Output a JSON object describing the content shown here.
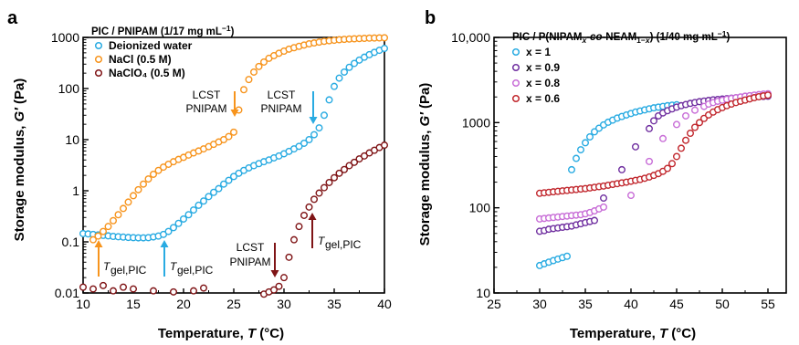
{
  "chart_data": [
    {
      "panel": "a",
      "type": "scatter",
      "xlabel": "Temperature, T (°C)",
      "ylabel": "Storage modulus, G′ (Pa)",
      "xlim": [
        10,
        40
      ],
      "ylim": [
        0.01,
        1000
      ],
      "yscale": "log",
      "xticks": [
        "10",
        "15",
        "20",
        "25",
        "30",
        "35",
        "40"
      ],
      "yticks": [
        "0.01",
        "0.1",
        "1",
        "10",
        "100",
        "1000"
      ],
      "legend_title": "PIC / PNIPAM (1/17 mg mL⁻¹)",
      "legend_position": "top-left",
      "series": [
        {
          "name": "Deionized water",
          "color": "#29ABE2",
          "x": [
            10,
            10.5,
            11,
            11.5,
            12,
            12.5,
            13,
            13.5,
            14,
            14.5,
            15,
            15.5,
            16,
            16.5,
            17,
            17.5,
            18,
            18.5,
            19,
            19.5,
            20,
            20.5,
            21,
            21.5,
            22,
            22.5,
            23,
            23.5,
            24,
            24.5,
            25,
            25.5,
            26,
            26.5,
            27,
            27.5,
            28,
            28.5,
            29,
            29.5,
            30,
            30.5,
            31,
            31.5,
            32,
            32.5,
            33,
            33.5,
            34,
            34.5,
            35,
            35.5,
            36,
            36.5,
            37,
            37.5,
            38,
            38.5,
            39,
            39.5,
            40
          ],
          "y": [
            0.145,
            0.143,
            0.14,
            0.137,
            0.134,
            0.131,
            0.128,
            0.126,
            0.124,
            0.122,
            0.121,
            0.12,
            0.12,
            0.121,
            0.125,
            0.13,
            0.14,
            0.16,
            0.19,
            0.23,
            0.28,
            0.34,
            0.42,
            0.52,
            0.63,
            0.77,
            0.93,
            1.1,
            1.35,
            1.6,
            1.9,
            2.2,
            2.5,
            2.8,
            3.1,
            3.4,
            3.7,
            4.0,
            4.4,
            4.8,
            5.3,
            5.9,
            6.6,
            7.4,
            8.5,
            10,
            12.5,
            17,
            30,
            60,
            110,
            160,
            210,
            260,
            310,
            360,
            410,
            460,
            510,
            560,
            610
          ]
        },
        {
          "name": "NaCl (0.5 M)",
          "color": "#F7941D",
          "x": [
            11,
            11.5,
            12,
            12.5,
            13,
            13.5,
            14,
            14.5,
            15,
            15.5,
            16,
            16.5,
            17,
            17.5,
            18,
            18.5,
            19,
            19.5,
            20,
            20.5,
            21,
            21.5,
            22,
            22.5,
            23,
            23.5,
            24,
            24.5,
            25,
            25.5,
            26,
            26.5,
            27,
            27.5,
            28,
            28.5,
            29,
            29.5,
            30,
            30.5,
            31,
            31.5,
            32,
            32.5,
            33,
            33.5,
            34,
            34.5,
            35,
            35.5,
            36,
            36.5,
            37,
            37.5,
            38,
            38.5,
            39,
            39.5,
            40
          ],
          "y": [
            0.11,
            0.13,
            0.16,
            0.2,
            0.26,
            0.34,
            0.45,
            0.6,
            0.8,
            1.05,
            1.35,
            1.7,
            2.1,
            2.5,
            2.9,
            3.3,
            3.7,
            4.1,
            4.5,
            5,
            5.5,
            6,
            6.6,
            7.3,
            8.1,
            9,
            10,
            11.5,
            14,
            38,
            95,
            150,
            210,
            270,
            330,
            390,
            440,
            490,
            540,
            590,
            630,
            670,
            710,
            750,
            780,
            810,
            840,
            860,
            880,
            900,
            915,
            930,
            940,
            950,
            960,
            970,
            975,
            980,
            985
          ]
        },
        {
          "name": "NaClO₄ (0.5 M)",
          "color": "#7F1416",
          "x": [
            10,
            11,
            12,
            13,
            14,
            15,
            17,
            19,
            21,
            22,
            27,
            28,
            28.5,
            29,
            29.5,
            30,
            30.5,
            31,
            31.5,
            32,
            32.5,
            33,
            33.5,
            34,
            34.5,
            35,
            35.5,
            36,
            36.5,
            37,
            37.5,
            38,
            38.5,
            39,
            39.5,
            40
          ],
          "y": [
            0.013,
            0.012,
            0.014,
            0.011,
            0.013,
            0.012,
            0.011,
            0.0105,
            0.011,
            0.0125,
            0.0085,
            0.0095,
            0.0105,
            0.0115,
            0.0135,
            0.02,
            0.05,
            0.11,
            0.2,
            0.33,
            0.48,
            0.68,
            0.9,
            1.15,
            1.45,
            1.8,
            2.2,
            2.6,
            3.1,
            3.6,
            4.2,
            4.8,
            5.5,
            6.2,
            7,
            7.8
          ]
        }
      ],
      "annotations": [
        {
          "text": "LCST",
          "text2": "PNIPAM",
          "color": "#F7941D"
        },
        {
          "text": "LCST",
          "text2": "PNIPAM",
          "color": "#29ABE2"
        },
        {
          "text": "LCST",
          "text2": "PNIPAM",
          "color": "#7F1416"
        },
        {
          "text": "T",
          "sub": "gel,PIC",
          "color": "#F7941D"
        },
        {
          "text": "T",
          "sub": "gel,PIC",
          "color": "#29ABE2"
        },
        {
          "text": "T",
          "sub": "gel,PIC",
          "color": "#7F1416"
        }
      ]
    },
    {
      "panel": "b",
      "type": "scatter",
      "xlabel": "Temperature, T (°C)",
      "ylabel": "Storage modulus, G′ (Pa)",
      "xlim": [
        25,
        57
      ],
      "ylim": [
        10,
        10000
      ],
      "yscale": "log",
      "xticks": [
        "25",
        "30",
        "35",
        "40",
        "45",
        "50",
        "55"
      ],
      "yticks": [
        "10",
        "100",
        "1000",
        "10,000"
      ],
      "legend_title": "PIC / P(NIPAMx-co-NEAM1−x) (1/40 mg mL⁻¹)",
      "legend_position": "top-left",
      "series": [
        {
          "name": "x = 1",
          "color": "#29ABE2",
          "x": [
            30,
            30.5,
            31,
            31.5,
            32,
            32.5,
            33,
            33.5,
            34,
            34.5,
            35,
            35.5,
            36,
            36.5,
            37,
            37.5,
            38,
            38.5,
            39,
            39.5,
            40,
            40.5,
            41,
            41.5,
            42,
            42.5,
            43,
            43.5,
            44,
            44.5,
            45
          ],
          "y": [
            21,
            22,
            23,
            24,
            25,
            26,
            27,
            280,
            380,
            480,
            580,
            680,
            780,
            860,
            940,
            1010,
            1070,
            1130,
            1180,
            1230,
            1280,
            1330,
            1370,
            1410,
            1450,
            1490,
            1520,
            1550,
            1580,
            1600,
            1620
          ]
        },
        {
          "name": "x = 0.9",
          "color": "#7030A0",
          "x": [
            30,
            30.5,
            31,
            31.5,
            32,
            32.5,
            33,
            33.5,
            34,
            34.5,
            35,
            35.5,
            36,
            37,
            39,
            40.5,
            42,
            42.5,
            43,
            43.5,
            44,
            44.5,
            45,
            45.5,
            46,
            46.5,
            47,
            47.5,
            48,
            48.5,
            49,
            49.5,
            50,
            50.5,
            51,
            51.5,
            52,
            52.5,
            53,
            53.5,
            54,
            54.5,
            55
          ],
          "y": [
            53,
            54,
            56,
            57,
            58,
            59,
            60,
            61,
            63,
            65,
            67,
            69,
            71,
            130,
            280,
            520,
            850,
            1050,
            1200,
            1300,
            1380,
            1450,
            1520,
            1580,
            1630,
            1680,
            1720,
            1760,
            1790,
            1820,
            1850,
            1870,
            1890,
            1910,
            1930,
            1950,
            1970,
            1990,
            2000,
            2010,
            2020,
            2030,
            2040
          ]
        },
        {
          "name": "x = 0.8",
          "color": "#C86DD7",
          "x": [
            30,
            30.5,
            31,
            31.5,
            32,
            32.5,
            33,
            33.5,
            34,
            34.5,
            35,
            35.5,
            36,
            36.5,
            37,
            40,
            42,
            43.5,
            45,
            46,
            47,
            48,
            48.5,
            49,
            49.5,
            50,
            50.5,
            51,
            51.5,
            52,
            52.5,
            53,
            53.5,
            54,
            54.5,
            55
          ],
          "y": [
            74,
            75,
            76,
            77,
            78,
            79,
            80,
            81,
            82,
            83,
            85,
            88,
            92,
            97,
            102,
            140,
            350,
            650,
            950,
            1200,
            1400,
            1550,
            1650,
            1720,
            1780,
            1830,
            1880,
            1920,
            1960,
            2000,
            2040,
            2070,
            2100,
            2130,
            2160,
            2180
          ]
        },
        {
          "name": "x = 0.6",
          "color": "#C1272D",
          "x": [
            30,
            30.5,
            31,
            31.5,
            32,
            32.5,
            33,
            33.5,
            34,
            34.5,
            35,
            35.5,
            36,
            36.5,
            37,
            37.5,
            38,
            38.5,
            39,
            39.5,
            40,
            40.5,
            41,
            41.5,
            42,
            42.5,
            43,
            43.5,
            44,
            44.5,
            45,
            45.5,
            46,
            46.5,
            47,
            47.5,
            48,
            48.5,
            49,
            49.5,
            50,
            50.5,
            51,
            51.5,
            52,
            52.5,
            53,
            53.5,
            54,
            54.5,
            55
          ],
          "y": [
            148,
            150,
            152,
            154,
            156,
            158,
            160,
            162,
            164,
            166,
            168,
            171,
            174,
            177,
            180,
            184,
            188,
            192,
            196,
            200,
            205,
            210,
            215,
            222,
            230,
            240,
            252,
            268,
            290,
            330,
            400,
            500,
            620,
            750,
            880,
            1000,
            1120,
            1230,
            1330,
            1420,
            1500,
            1580,
            1650,
            1720,
            1780,
            1840,
            1900,
            1960,
            2010,
            2060,
            2100
          ]
        }
      ]
    }
  ],
  "panel_a": {
    "letter": "a",
    "legend_title": "PIC / PNIPAM (1/17 mg mL⁻¹)",
    "legend_items": [
      "Deionized water",
      "NaCl (0.5 M)",
      "NaClO₄ (0.5 M)"
    ],
    "xlabel": "Temperature, T (°C)",
    "ylabel": "Storage modulus, G′ (Pa)"
  },
  "panel_b": {
    "letter": "b",
    "legend_title": "PIC / P(NIPAMx-co-NEAM1−x) (1/40 mg mL⁻¹)",
    "legend_items": [
      "x = 1",
      "x = 0.9",
      "x = 0.8",
      "x = 0.6"
    ],
    "xlabel": "Temperature, T (°C)",
    "ylabel": "Storage modulus, G′ (Pa)"
  }
}
